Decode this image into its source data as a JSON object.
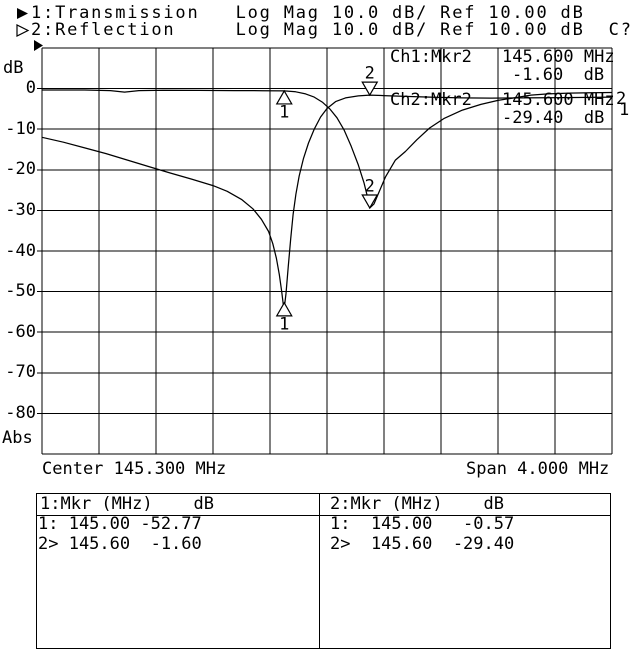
{
  "header": {
    "line1": "1:Transmission   Log Mag 10.0 dB/ Ref 10.00 dB",
    "line2": "2:Reflection     Log Mag 10.0 dB/ Ref 10.00 dB  C?"
  },
  "axis": {
    "unit_label": "dB",
    "abs_label": "Abs"
  },
  "info_box": {
    "ch1_label": "Ch1:Mkr2",
    "ch1_freq": "145.600 MHz",
    "ch1_value": "-1.60  dB",
    "ch2_label": "Ch2:Mkr2",
    "ch2_freq": "145.600 MHz",
    "ch2_value": "-29.40  dB"
  },
  "trace_end_labels": {
    "top": "2",
    "bottom": "1"
  },
  "footer": {
    "center": "Center 145.300 MHz",
    "span": "Span 4.000 MHz"
  },
  "marker_table": {
    "section1": {
      "header": "1:Mkr (MHz)    dB",
      "rows": [
        "1: 145.00 -52.77",
        "2> 145.60  -1.60"
      ]
    },
    "section2": {
      "header": "2:Mkr (MHz)    dB",
      "rows": [
        "1:  145.00   -0.57",
        "2>  145.60  -29.40"
      ]
    }
  },
  "colors": {
    "foreground": "#000000",
    "background": "#ffffff"
  },
  "chart_data": {
    "type": "line",
    "title": "Network analyzer sweep: Transmission and Reflection, Log Mag 10.0 dB/div, Ref 10.00 dB",
    "x_axis": {
      "min_mhz": 143.3,
      "max_mhz": 147.3,
      "center_mhz": 145.3,
      "span_mhz": 4.0,
      "divisions": 10
    },
    "y_axis": {
      "unit": "dB",
      "max_db": 10,
      "min_db": -90,
      "db_per_div": 10,
      "ref_db": 10,
      "tick_labels": [
        "0",
        "-10",
        "-20",
        "-30",
        "-40",
        "-50",
        "-60",
        "-70",
        "-80"
      ]
    },
    "grid": true,
    "series": [
      {
        "name": "Transmission",
        "channel": 1,
        "format": "Log Mag",
        "scale": "10.0 dB/",
        "ref": "10.00 dB",
        "points": [
          [
            143.3,
            -12.0
          ],
          [
            143.45,
            -13.2
          ],
          [
            143.6,
            -14.6
          ],
          [
            143.75,
            -16.0
          ],
          [
            143.9,
            -17.6
          ],
          [
            144.05,
            -19.2
          ],
          [
            144.2,
            -20.8
          ],
          [
            144.35,
            -22.3
          ],
          [
            144.5,
            -23.9
          ],
          [
            144.6,
            -25.3
          ],
          [
            144.7,
            -27.3
          ],
          [
            144.78,
            -29.6
          ],
          [
            144.84,
            -32.2
          ],
          [
            144.89,
            -35.2
          ],
          [
            144.92,
            -38.2
          ],
          [
            144.945,
            -41.8
          ],
          [
            144.965,
            -45.8
          ],
          [
            144.982,
            -50.0
          ],
          [
            144.998,
            -54.6
          ],
          [
            145.012,
            -50.5
          ],
          [
            145.028,
            -44.0
          ],
          [
            145.045,
            -37.0
          ],
          [
            145.062,
            -31.0
          ],
          [
            145.082,
            -26.0
          ],
          [
            145.105,
            -21.5
          ],
          [
            145.135,
            -17.2
          ],
          [
            145.17,
            -13.4
          ],
          [
            145.21,
            -10.0
          ],
          [
            145.255,
            -7.0
          ],
          [
            145.3,
            -4.9
          ],
          [
            145.36,
            -3.2
          ],
          [
            145.43,
            -2.3
          ],
          [
            145.52,
            -1.8
          ],
          [
            145.6,
            -1.6
          ],
          [
            145.72,
            -1.75
          ],
          [
            145.88,
            -1.95
          ],
          [
            146.05,
            -2.15
          ],
          [
            146.25,
            -2.3
          ],
          [
            146.45,
            -2.35
          ],
          [
            146.65,
            -2.3
          ],
          [
            146.85,
            -2.25
          ],
          [
            147.05,
            -2.2
          ],
          [
            147.3,
            -2.1
          ]
        ]
      },
      {
        "name": "Reflection",
        "channel": 2,
        "format": "Log Mag",
        "scale": "10.0 dB/",
        "ref": "10.00 dB",
        "points": [
          [
            143.3,
            -0.35
          ],
          [
            143.6,
            -0.35
          ],
          [
            143.78,
            -0.5
          ],
          [
            143.88,
            -0.85
          ],
          [
            143.98,
            -0.5
          ],
          [
            144.15,
            -0.4
          ],
          [
            144.4,
            -0.45
          ],
          [
            144.65,
            -0.5
          ],
          [
            144.85,
            -0.52
          ],
          [
            145.0,
            -0.57
          ],
          [
            145.08,
            -0.8
          ],
          [
            145.15,
            -1.3
          ],
          [
            145.21,
            -2.1
          ],
          [
            145.27,
            -3.4
          ],
          [
            145.32,
            -5.0
          ],
          [
            145.37,
            -7.2
          ],
          [
            145.42,
            -10.2
          ],
          [
            145.47,
            -14.2
          ],
          [
            145.52,
            -18.8
          ],
          [
            145.56,
            -23.2
          ],
          [
            145.585,
            -26.8
          ],
          [
            145.6,
            -29.4
          ],
          [
            145.63,
            -28.4
          ],
          [
            145.665,
            -25.5
          ],
          [
            145.71,
            -21.8
          ],
          [
            145.78,
            -17.6
          ],
          [
            145.85,
            -15.5
          ],
          [
            145.93,
            -12.6
          ],
          [
            146.02,
            -9.7
          ],
          [
            146.12,
            -7.4
          ],
          [
            146.25,
            -5.3
          ],
          [
            146.38,
            -3.9
          ],
          [
            146.5,
            -2.9
          ],
          [
            146.63,
            -2.2
          ],
          [
            146.73,
            -1.6
          ],
          [
            146.85,
            -1.3
          ],
          [
            147.0,
            -1.1
          ],
          [
            147.15,
            -1.0
          ],
          [
            147.3,
            -0.95
          ]
        ]
      }
    ],
    "markers": [
      {
        "channel": 1,
        "label": "1",
        "mhz": 145.0,
        "db": -52.77,
        "pointer": "up"
      },
      {
        "channel": 1,
        "label": "2",
        "mhz": 145.6,
        "db": -1.6,
        "pointer": "down"
      },
      {
        "channel": 2,
        "label": "1",
        "mhz": 145.0,
        "db": -0.57,
        "pointer": "up"
      },
      {
        "channel": 2,
        "label": "2",
        "mhz": 145.6,
        "db": -29.4,
        "pointer": "down"
      }
    ]
  }
}
